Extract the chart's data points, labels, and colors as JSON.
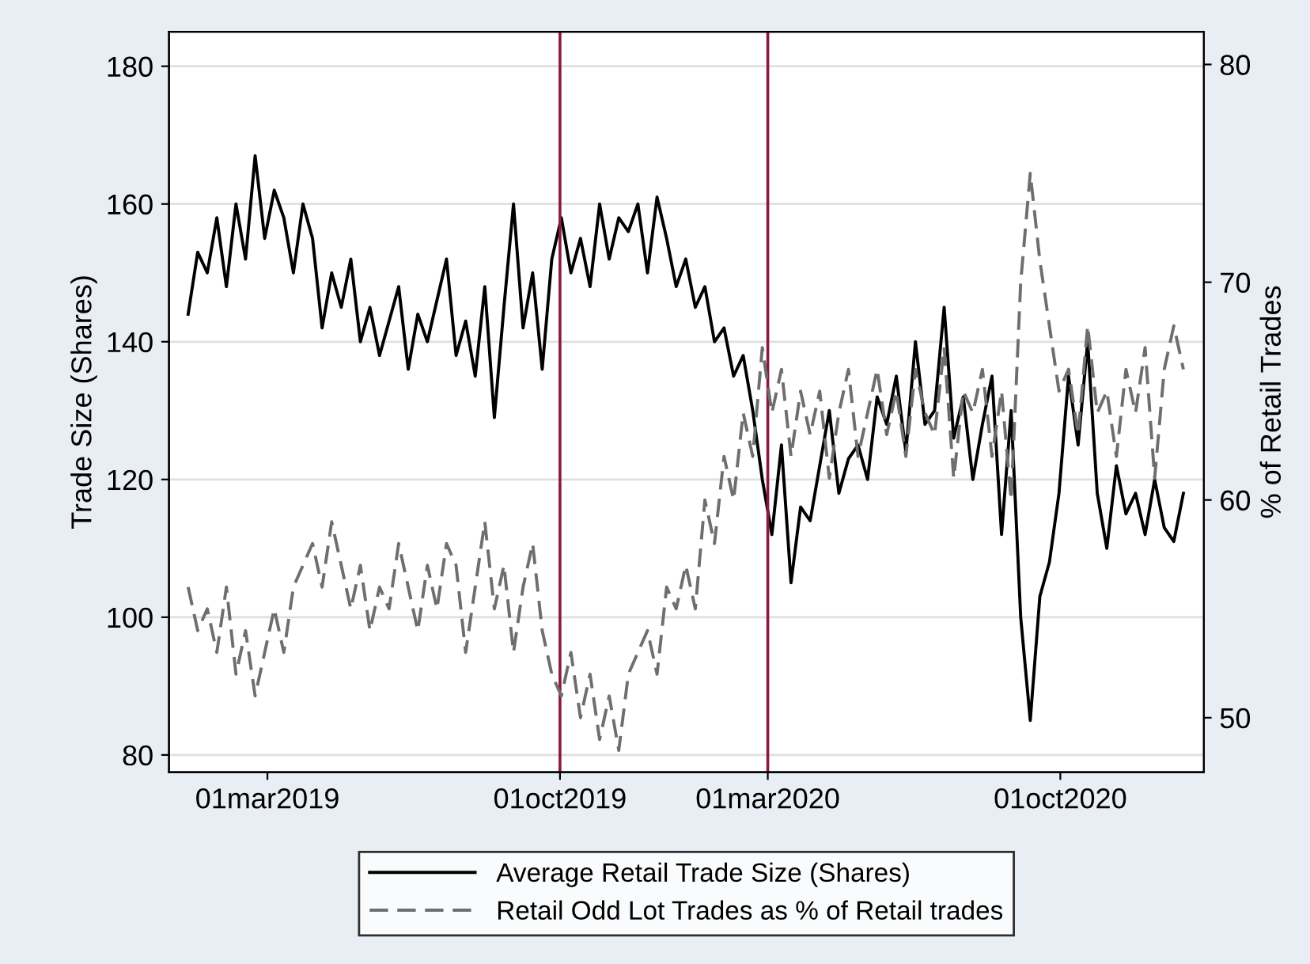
{
  "chart_data": {
    "type": "line",
    "x": [
      "2019-01-02",
      "2019-01-09",
      "2019-01-16",
      "2019-01-23",
      "2019-01-30",
      "2019-02-06",
      "2019-02-13",
      "2019-02-20",
      "2019-02-27",
      "2019-03-06",
      "2019-03-13",
      "2019-03-20",
      "2019-03-27",
      "2019-04-03",
      "2019-04-10",
      "2019-04-17",
      "2019-04-24",
      "2019-05-01",
      "2019-05-08",
      "2019-05-15",
      "2019-05-22",
      "2019-05-29",
      "2019-06-05",
      "2019-06-12",
      "2019-06-19",
      "2019-06-26",
      "2019-07-03",
      "2019-07-10",
      "2019-07-17",
      "2019-07-24",
      "2019-07-31",
      "2019-08-07",
      "2019-08-14",
      "2019-08-21",
      "2019-08-28",
      "2019-09-04",
      "2019-09-11",
      "2019-09-18",
      "2019-09-25",
      "2019-10-02",
      "2019-10-09",
      "2019-10-16",
      "2019-10-23",
      "2019-10-30",
      "2019-11-06",
      "2019-11-13",
      "2019-11-20",
      "2019-11-27",
      "2019-12-04",
      "2019-12-11",
      "2019-12-18",
      "2019-12-25",
      "2020-01-01",
      "2020-01-08",
      "2020-01-15",
      "2020-01-22",
      "2020-01-29",
      "2020-02-05",
      "2020-02-12",
      "2020-02-19",
      "2020-02-26",
      "2020-03-04",
      "2020-03-11",
      "2020-03-18",
      "2020-03-25",
      "2020-04-01",
      "2020-04-08",
      "2020-04-15",
      "2020-04-22",
      "2020-04-29",
      "2020-05-06",
      "2020-05-13",
      "2020-05-20",
      "2020-05-27",
      "2020-06-03",
      "2020-06-10",
      "2020-06-17",
      "2020-06-24",
      "2020-07-01",
      "2020-07-08",
      "2020-07-15",
      "2020-07-22",
      "2020-07-29",
      "2020-08-05",
      "2020-08-12",
      "2020-08-19",
      "2020-08-26",
      "2020-09-02",
      "2020-09-09",
      "2020-09-16",
      "2020-09-23",
      "2020-09-30",
      "2020-10-07",
      "2020-10-14",
      "2020-10-21",
      "2020-10-28",
      "2020-11-04",
      "2020-11-11",
      "2020-11-18",
      "2020-11-25",
      "2020-12-02",
      "2020-12-09",
      "2020-12-16",
      "2020-12-23",
      "2020-12-30"
    ],
    "series": [
      {
        "name": "Average Retail Trade Size (Shares)",
        "color": "#000000",
        "line_style": "solid",
        "values": [
          144,
          153,
          150,
          158,
          148,
          160,
          152,
          167,
          155,
          162,
          158,
          150,
          160,
          155,
          142,
          150,
          145,
          152,
          140,
          145,
          138,
          143,
          148,
          136,
          144,
          140,
          146,
          152,
          138,
          143,
          135,
          148,
          129,
          145,
          160,
          142,
          150,
          136,
          152,
          158,
          150,
          155,
          148,
          160,
          152,
          158,
          156,
          160,
          150,
          161,
          155,
          148,
          152,
          145,
          148,
          140,
          142,
          135,
          138,
          130,
          120,
          112,
          125,
          105,
          116,
          114,
          122,
          130,
          118,
          123,
          125,
          120,
          132,
          128,
          135,
          124,
          140,
          128,
          130,
          145,
          126,
          132,
          120,
          128,
          135,
          112,
          130,
          100,
          85,
          103,
          108,
          118,
          135,
          125,
          140,
          118,
          110,
          122,
          115,
          118,
          112,
          120,
          113,
          111,
          118
        ]
      },
      {
        "name": "Retail Odd Lot Trades as % of Retail trades",
        "color": "#6e6e6e",
        "line_style": "dashed",
        "axis": "y2",
        "values": [
          56,
          54,
          55,
          53,
          56,
          52,
          54,
          51,
          53,
          55,
          53,
          56,
          57,
          58,
          56,
          59,
          57,
          55,
          57,
          54,
          56,
          55,
          58,
          56,
          54,
          57,
          55,
          58,
          57,
          53,
          56,
          59,
          55,
          57,
          53,
          56,
          58,
          54,
          52,
          51,
          53,
          50,
          52,
          49,
          51,
          48.5,
          52,
          53,
          54,
          52,
          56,
          55,
          57,
          55,
          60,
          58,
          62,
          60,
          64,
          62,
          67,
          64,
          66,
          62,
          65,
          63,
          65,
          61,
          64,
          66,
          62,
          64,
          66,
          63,
          65,
          62,
          66,
          64,
          63,
          67,
          61,
          65,
          64,
          66,
          62,
          65,
          60,
          70,
          75,
          71,
          68,
          65,
          66,
          63,
          68,
          64,
          65,
          62,
          66,
          64,
          67,
          61,
          66,
          68,
          66
        ]
      }
    ],
    "ylabel": "Trade Size (Shares)",
    "y2label": "% of Retail Trades",
    "xlim": [
      "2018-12-19",
      "2021-01-14"
    ],
    "xticks": [
      {
        "value": "2019-03-01",
        "label": "01mar2019"
      },
      {
        "value": "2019-10-01",
        "label": "01oct2019"
      },
      {
        "value": "2020-03-01",
        "label": "01mar2020"
      },
      {
        "value": "2020-10-01",
        "label": "01oct2020"
      }
    ],
    "ylim": [
      77.5,
      185
    ],
    "yticks": [
      80,
      100,
      120,
      140,
      160,
      180
    ],
    "y2lim": [
      47.5,
      81.5
    ],
    "y2ticks": [
      50,
      60,
      70,
      80
    ],
    "ref_lines": [
      {
        "axis": "x",
        "value": "2019-10-01",
        "label": null,
        "color": "#8b1a3a"
      },
      {
        "axis": "x",
        "value": "2020-03-01",
        "label": null,
        "color": "#8b1a3a"
      }
    ],
    "grid": "y",
    "legend": "bottom",
    "marker": "none"
  }
}
